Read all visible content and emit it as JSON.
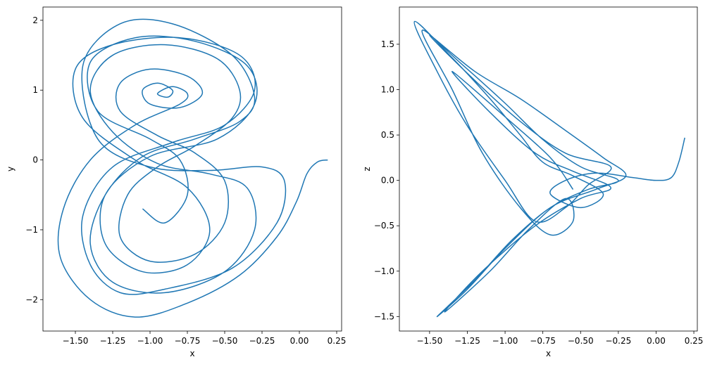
{
  "chart_data": [
    {
      "type": "line",
      "xlabel": "x",
      "ylabel": "y",
      "xlim": [
        -1.717,
        0.283
      ],
      "ylim": [
        -2.45,
        2.19
      ],
      "xticks": [
        {
          "value": -1.5,
          "label": "−1.50"
        },
        {
          "value": -1.25,
          "label": "−1.25"
        },
        {
          "value": -1.0,
          "label": "−1.00"
        },
        {
          "value": -0.75,
          "label": "−0.75"
        },
        {
          "value": -0.5,
          "label": "−0.50"
        },
        {
          "value": -0.25,
          "label": "−0.25"
        },
        {
          "value": 0,
          "label": "0.00"
        },
        0.25
      ],
      "yticks": [
        {
          "value": -2,
          "label": "−2"
        },
        {
          "value": -1,
          "label": "−1"
        },
        0,
        1,
        2
      ],
      "series": [
        {
          "color": "#1f77b4",
          "x": [
            0.19,
            0.12,
            0.05,
            -0.02,
            -0.15,
            -0.4,
            -0.75,
            -1.1,
            -1.4,
            -1.6,
            -1.58,
            -1.4,
            -1.1,
            -0.8,
            -0.75,
            -0.85,
            -0.95,
            -0.88,
            -0.85,
            -0.95,
            -1.05,
            -1.0,
            -0.8,
            -0.65,
            -0.75,
            -1.0,
            -1.2,
            -1.2,
            -0.95,
            -0.7,
            -0.5,
            -0.5,
            -0.7,
            -1.0,
            -1.2,
            -1.15,
            -0.95,
            -0.7,
            -0.45,
            -0.4,
            -0.55,
            -0.9,
            -1.25,
            -1.4,
            -1.25,
            -0.95,
            -0.6,
            -0.35,
            -0.3,
            -0.5,
            -0.9,
            -1.25,
            -1.4,
            -1.3,
            -1.05,
            -0.7,
            -0.4,
            -0.3,
            -0.45,
            -0.85,
            -1.2,
            -1.45,
            -1.35,
            -1.0,
            -0.6,
            -0.25,
            -0.1,
            -0.15,
            -0.45,
            -0.9,
            -1.2,
            -1.4,
            -1.45,
            -1.25,
            -0.85,
            -0.5,
            -0.3,
            -0.4,
            -0.8,
            -1.25,
            -1.5,
            -1.45,
            -1.1,
            -0.75,
            -0.6,
            -0.75,
            -1.05,
            -1.3,
            -1.3,
            -1.0,
            -0.55,
            -0.3,
            -0.35,
            -0.7,
            -1.1,
            -1.4,
            -1.35,
            -1.0,
            -0.8,
            -0.75,
            -0.9,
            -1.05
          ],
          "values": [
            0,
            -0.03,
            -0.2,
            -0.6,
            -1.1,
            -1.65,
            -2.05,
            -2.25,
            -2.0,
            -1.4,
            -0.7,
            0.0,
            0.5,
            0.8,
            0.95,
            1.05,
            0.95,
            0.9,
            1.0,
            1.1,
            1.0,
            0.8,
            0.75,
            0.95,
            1.2,
            1.3,
            1.1,
            0.7,
            0.35,
            0.1,
            -0.3,
            -0.9,
            -1.35,
            -1.45,
            -1.1,
            -0.5,
            -0.1,
            0.2,
            0.6,
            1.0,
            1.45,
            1.65,
            1.5,
            1.0,
            0.4,
            -0.05,
            -0.2,
            -0.4,
            -1.0,
            -1.6,
            -1.9,
            -1.75,
            -1.2,
            -0.5,
            0.05,
            0.3,
            0.55,
            0.9,
            1.5,
            1.95,
            1.95,
            1.35,
            0.3,
            -0.1,
            -0.15,
            -0.1,
            -0.3,
            -0.9,
            -1.55,
            -1.85,
            -1.9,
            -1.5,
            -0.8,
            -0.1,
            0.25,
            0.5,
            1.0,
            1.5,
            1.75,
            1.65,
            1.3,
            0.6,
            0.0,
            -0.4,
            -1.0,
            -1.5,
            -1.6,
            -1.2,
            -0.5,
            0.05,
            0.3,
            0.8,
            1.35,
            1.7,
            1.75,
            1.4,
            0.7,
            0.3,
            0.0,
            -0.5,
            -0.9,
            -0.7
          ]
        }
      ]
    },
    {
      "type": "line",
      "xlabel": "x",
      "ylabel": "z",
      "xlim": [
        -1.7,
        0.273
      ],
      "ylim": [
        -1.66,
        1.91
      ],
      "xticks": [
        {
          "value": -1.5,
          "label": "−1.50"
        },
        {
          "value": -1.25,
          "label": "−1.25"
        },
        {
          "value": -1.0,
          "label": "−1.00"
        },
        {
          "value": -0.75,
          "label": "−0.75"
        },
        {
          "value": -0.5,
          "label": "−0.50"
        },
        {
          "value": -0.25,
          "label": "−0.25"
        },
        {
          "value": 0,
          "label": "0.00"
        },
        0.25
      ],
      "yticks": [
        {
          "value": -1.5,
          "label": "−1.5"
        },
        {
          "value": -1.0,
          "label": "−1.0"
        },
        {
          "value": -0.5,
          "label": "−0.5"
        },
        {
          "value": 0,
          "label": "0.0"
        },
        0.5,
        {
          "value": 1.0,
          "label": "1.0"
        },
        1.5
      ],
      "series": [
        {
          "color": "#1f77b4",
          "x": [
            0.19,
            0.15,
            0.1,
            0.0,
            -0.15,
            -0.4,
            -0.6,
            -0.7,
            -0.5,
            -0.35,
            -0.55,
            -0.75,
            -0.9,
            -1.1,
            -1.35,
            -1.6,
            -1.45,
            -1.25,
            -1.0,
            -0.8,
            -0.6,
            -0.45,
            -0.3,
            -0.6,
            -0.9,
            -1.2,
            -1.5,
            -1.2,
            -0.9,
            -0.6,
            -0.35,
            -0.2,
            -0.4,
            -0.7,
            -1.0,
            -1.25,
            -1.45,
            -1.2,
            -0.95,
            -0.7,
            -0.45,
            -0.25,
            -0.5,
            -0.75,
            -1.0,
            -1.3,
            -1.55,
            -1.35,
            -1.15,
            -0.9,
            -0.7,
            -0.55,
            -0.6,
            -0.85,
            -1.1,
            -1.4,
            -1.15,
            -0.8,
            -0.5,
            -0.3,
            -0.55,
            -0.8,
            -1.1,
            -1.35,
            -1.0,
            -0.7,
            -0.55
          ],
          "values": [
            0.47,
            0.2,
            0.03,
            0.0,
            0.03,
            0.08,
            0.0,
            -0.15,
            -0.3,
            -0.15,
            0.05,
            0.2,
            0.5,
            0.9,
            1.35,
            1.75,
            1.2,
            0.6,
            0.0,
            -0.45,
            -0.3,
            -0.05,
            0.15,
            0.3,
            0.65,
            1.1,
            1.6,
            1.2,
            0.9,
            0.55,
            0.25,
            0.05,
            -0.1,
            -0.3,
            -0.75,
            -1.2,
            -1.5,
            -1.1,
            -0.65,
            -0.3,
            -0.1,
            0.0,
            0.15,
            0.45,
            0.85,
            1.3,
            1.65,
            1.0,
            0.3,
            -0.3,
            -0.6,
            -0.45,
            -0.2,
            -0.55,
            -1.0,
            -1.45,
            -1.0,
            -0.5,
            -0.2,
            -0.08,
            0.1,
            0.3,
            0.75,
            1.2,
            0.7,
            0.25,
            -0.1
          ]
        }
      ]
    }
  ]
}
